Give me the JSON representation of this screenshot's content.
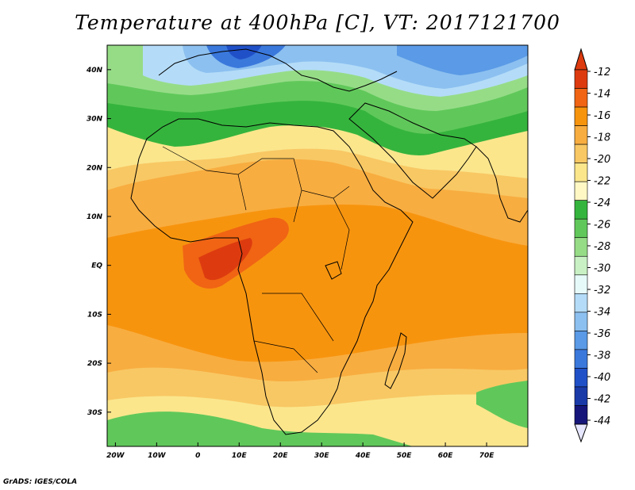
{
  "title": "Temperature at 400hPa [C], VT: 2017121700",
  "credit": "GrADS: IGES/COLA",
  "map": {
    "lon_range": [
      -22,
      80
    ],
    "lat_range": [
      -37,
      45
    ],
    "x_ticks": [
      "20W",
      "10W",
      "0",
      "10E",
      "20E",
      "30E",
      "40E",
      "50E",
      "60E",
      "70E"
    ],
    "x_tick_values": [
      -20,
      -10,
      0,
      10,
      20,
      30,
      40,
      50,
      60,
      70
    ],
    "y_ticks": [
      "40N",
      "30N",
      "20N",
      "10N",
      "EQ",
      "10S",
      "20S",
      "30S"
    ],
    "y_tick_values": [
      40,
      30,
      20,
      10,
      0,
      -10,
      -20,
      -30
    ]
  },
  "colorbar": {
    "labels": [
      "-12",
      "-14",
      "-16",
      "-18",
      "-20",
      "-22",
      "-24",
      "-26",
      "-28",
      "-30",
      "-32",
      "-34",
      "-36",
      "-38",
      "-40",
      "-42",
      "-44"
    ],
    "colors": [
      "#dd3b0f",
      "#f06414",
      "#f7940e",
      "#f8ad40",
      "#f8c864",
      "#fbe68c",
      "#fff8c4",
      "#35b43d",
      "#60c85a",
      "#96dc87",
      "#c8f0c4",
      "#e6fafa",
      "#b4dcf8",
      "#8cc0f0",
      "#5a9ae6",
      "#3a78dc",
      "#2050c8",
      "#1a3aa8",
      "#16167a"
    ],
    "top_arrow_color": "#dd3b0f",
    "bottom_arrow_color": "#e6e6ff"
  }
}
